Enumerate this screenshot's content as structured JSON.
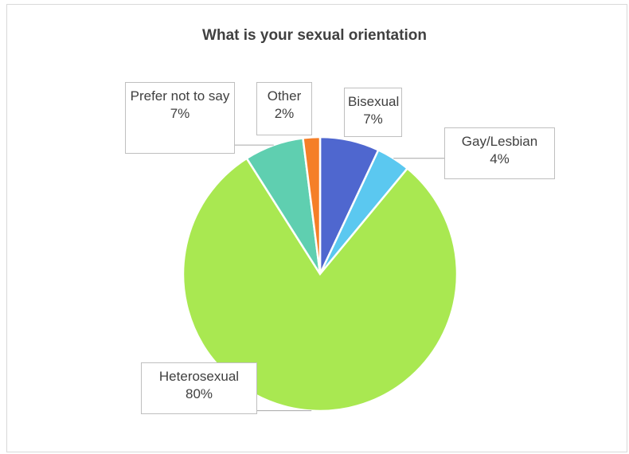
{
  "chart_data": {
    "type": "pie",
    "title": "What is your sexual orientation",
    "categories": [
      "Bisexual",
      "Gay/Lesbian",
      "Heterosexual",
      "Prefer not to say",
      "Other"
    ],
    "values": [
      7,
      4,
      80,
      7,
      2
    ],
    "value_labels": [
      "7%",
      "4%",
      "80%",
      "7%",
      "2%"
    ],
    "colors": [
      "#4f67cf",
      "#5bc8f0",
      "#a9e851",
      "#5fcfb0",
      "#f57f28"
    ]
  }
}
